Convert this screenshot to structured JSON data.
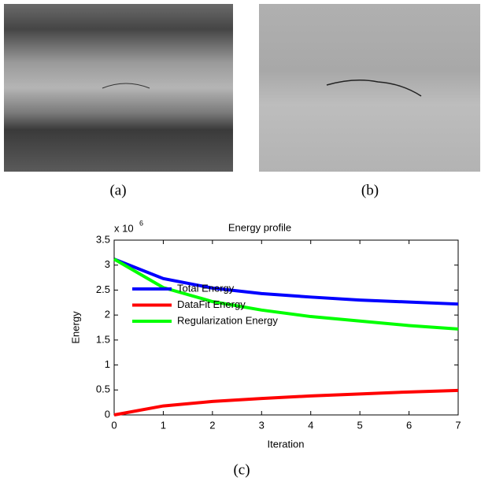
{
  "captions": {
    "a": "(a)",
    "b": "(b)",
    "c": "(c)"
  },
  "chart_data": {
    "type": "line",
    "title": "Energy profile",
    "x_label": "Iteration",
    "y_label": "Energy",
    "y_multiplier": "x 10",
    "y_multiplier_exponent": "6",
    "x": [
      0,
      1,
      2,
      3,
      4,
      5,
      6,
      7
    ],
    "series": [
      {
        "name": "Total Energy",
        "color": "#0000ff",
        "values": [
          3.12,
          2.73,
          2.54,
          2.43,
          2.36,
          2.3,
          2.26,
          2.22
        ]
      },
      {
        "name": "DataFit Energy",
        "color": "#ff0000",
        "values": [
          0,
          0.18,
          0.27,
          0.33,
          0.38,
          0.42,
          0.46,
          0.49
        ]
      },
      {
        "name": "Regularization Energy",
        "color": "#00ff00",
        "values": [
          3.12,
          2.55,
          2.27,
          2.1,
          1.97,
          1.88,
          1.79,
          1.72
        ]
      }
    ],
    "xlim": [
      0,
      7
    ],
    "xticks": [
      0,
      1,
      2,
      3,
      4,
      5,
      6,
      7
    ],
    "ylim": [
      0,
      3.5
    ],
    "yticks": [
      0,
      0.5,
      1,
      1.5,
      2,
      2.5,
      3,
      3.5
    ],
    "legend": "left"
  }
}
